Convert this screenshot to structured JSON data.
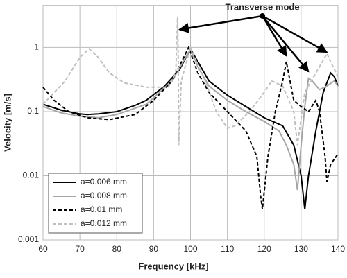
{
  "chart_data": {
    "type": "line",
    "xlabel": "Frequency [kHz]",
    "ylabel": "Velocity [m/s]",
    "xlim": [
      60,
      140
    ],
    "xticks": [
      60,
      70,
      80,
      90,
      100,
      110,
      120,
      130,
      140
    ],
    "ylim": [
      0.001,
      4.5
    ],
    "yticks": [
      0.001,
      0.01,
      0.1,
      1
    ],
    "ylog": true,
    "grid": true,
    "legend": "lower left",
    "series": [
      {
        "name": "a=0.006 mm",
        "color": "#000000",
        "dash": false,
        "x": [
          60,
          65,
          70,
          72,
          75,
          80,
          85,
          88,
          93,
          97,
          100,
          102,
          105,
          110,
          115,
          120,
          125,
          128,
          130,
          131,
          132,
          134,
          136,
          138,
          139,
          140
        ],
        "values": [
          0.13,
          0.105,
          0.092,
          0.09,
          0.092,
          0.1,
          0.125,
          0.15,
          0.25,
          0.45,
          0.95,
          0.6,
          0.3,
          0.18,
          0.12,
          0.08,
          0.06,
          0.03,
          0.01,
          0.003,
          0.01,
          0.05,
          0.2,
          0.4,
          0.35,
          0.25
        ]
      },
      {
        "name": "a=0.008 mm",
        "color": "#a6a6a6",
        "dash": false,
        "x": [
          60,
          65,
          70,
          75,
          80,
          88,
          95,
          100,
          102,
          105,
          110,
          115,
          120,
          124,
          126,
          128,
          129,
          130,
          131,
          132,
          133,
          135,
          137,
          139,
          140
        ],
        "values": [
          0.12,
          0.095,
          0.085,
          0.08,
          0.09,
          0.13,
          0.3,
          0.95,
          0.5,
          0.25,
          0.15,
          0.1,
          0.07,
          0.05,
          0.03,
          0.015,
          0.006,
          0.03,
          0.12,
          0.33,
          0.3,
          0.22,
          0.25,
          0.3,
          0.25
        ]
      },
      {
        "name": "a=0.01 mm",
        "color": "#000000",
        "dash": true,
        "x": [
          60,
          63,
          67,
          72,
          78,
          85,
          90,
          95,
          99.5,
          102,
          105,
          110,
          115,
          118,
          119,
          119.5,
          121,
          123,
          125,
          126,
          127,
          128,
          130,
          132,
          134,
          135,
          136.5,
          137,
          138,
          140
        ],
        "values": [
          0.24,
          0.15,
          0.1,
          0.08,
          0.075,
          0.09,
          0.15,
          0.3,
          1.0,
          0.4,
          0.2,
          0.1,
          0.05,
          0.02,
          0.005,
          0.003,
          0.02,
          0.1,
          0.3,
          0.6,
          0.3,
          0.15,
          0.12,
          0.1,
          0.15,
          0.1,
          0.02,
          0.008,
          0.015,
          0.022
        ]
      },
      {
        "name": "a=0.012 mm",
        "color": "#bfbfbf",
        "dash": true,
        "x": [
          60,
          66,
          70,
          72.5,
          75,
          78,
          82,
          88,
          94,
          96,
          96.5,
          96.7,
          96.8,
          97.5,
          100,
          104,
          107,
          110,
          112,
          116,
          120,
          122,
          125,
          128,
          129,
          131,
          134,
          137,
          138,
          140
        ],
        "values": [
          0.13,
          0.3,
          0.7,
          0.95,
          0.7,
          0.4,
          0.28,
          0.24,
          0.24,
          0.4,
          3.0,
          0.5,
          0.03,
          0.3,
          1.0,
          0.3,
          0.1,
          0.055,
          0.06,
          0.1,
          0.2,
          0.3,
          0.25,
          0.1,
          0.03,
          0.2,
          0.4,
          0.8,
          0.6,
          0.35
        ]
      }
    ],
    "annotation": {
      "text": "Transverse mode",
      "x": 119.5,
      "y": 3.1,
      "arrows": [
        {
          "x": 97,
          "y": 1.9
        },
        {
          "x": 126,
          "y": 0.74
        },
        {
          "x": 132,
          "y": 0.42
        },
        {
          "x": 137,
          "y": 0.84
        }
      ]
    }
  }
}
